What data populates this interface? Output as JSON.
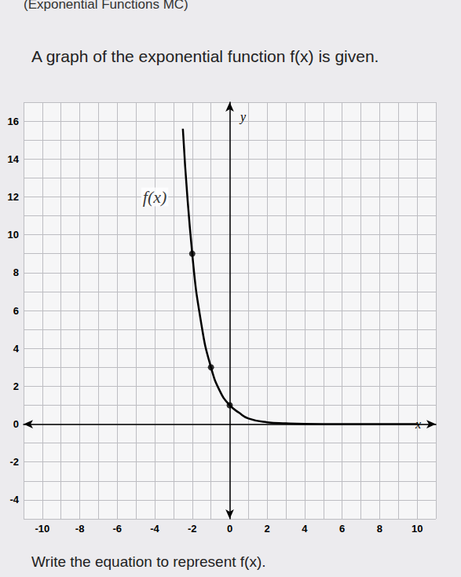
{
  "chart_data": {
    "type": "line",
    "header": "(Exponential Functions MC)",
    "title": "A graph of the exponential function f(x) is given.",
    "subtitle": "Write the equation to represent f(x).",
    "x_label": "x",
    "y_label": "y",
    "annotations": [
      {
        "text": "f(x)",
        "x": -4,
        "y": 12
      }
    ],
    "xlim": [
      -11,
      11
    ],
    "xticks": [
      -10,
      -8,
      -6,
      -4,
      -2,
      0,
      2,
      4,
      6,
      8,
      10
    ],
    "ylim": [
      -5,
      17
    ],
    "yticks": [
      -4,
      -2,
      0,
      2,
      4,
      6,
      8,
      10,
      12,
      14,
      16
    ],
    "grid": true,
    "series": [
      {
        "name": "f(x)",
        "type": "line",
        "color": "#000000",
        "x": [
          -2.5,
          -2,
          -1.5,
          -1,
          -0.5,
          0,
          0.5,
          1,
          2,
          3,
          4,
          6,
          8,
          10
        ],
        "values": [
          15.6,
          9,
          5.2,
          3,
          1.7,
          1,
          0.6,
          0.3,
          0.1,
          0.04,
          0.01,
          0,
          0,
          0
        ]
      },
      {
        "type": "scatter",
        "marker": "circle",
        "color": "#000000",
        "x": [
          -2,
          -1,
          0
        ],
        "values": [
          9,
          3,
          1
        ]
      }
    ]
  }
}
